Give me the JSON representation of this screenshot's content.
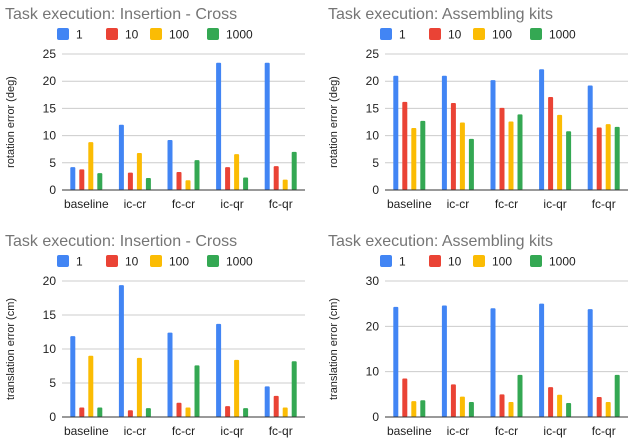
{
  "chart_data": [
    {
      "type": "bar",
      "title": "Task execution: Insertion - Cross",
      "ylabel": "rotation error (deg)",
      "xlabel": "",
      "categories": [
        "baseline",
        "ic-cr",
        "fc-cr",
        "ic-qr",
        "fc-qr"
      ],
      "ylim": [
        0,
        25
      ],
      "yticks": [
        0,
        5,
        10,
        15,
        20,
        25
      ],
      "series": [
        {
          "name": "1",
          "color": "#4285f4",
          "values": [
            4.2,
            12.0,
            9.2,
            23.4,
            23.4
          ]
        },
        {
          "name": "10",
          "color": "#ea4335",
          "values": [
            3.8,
            3.2,
            3.3,
            4.2,
            4.4
          ]
        },
        {
          "name": "100",
          "color": "#fbbc04",
          "values": [
            8.8,
            6.8,
            1.8,
            6.6,
            1.9
          ]
        },
        {
          "name": "1000",
          "color": "#34a853",
          "values": [
            3.1,
            2.2,
            5.5,
            2.3,
            7.0
          ]
        }
      ],
      "legend": "top"
    },
    {
      "type": "bar",
      "title": "Task execution: Assembling kits",
      "ylabel": "rotation error (deg)",
      "xlabel": "",
      "categories": [
        "baseline",
        "ic-cr",
        "fc-cr",
        "ic-qr",
        "fc-qr"
      ],
      "ylim": [
        0,
        25
      ],
      "yticks": [
        0,
        5,
        10,
        15,
        20,
        25
      ],
      "series": [
        {
          "name": "1",
          "color": "#4285f4",
          "values": [
            21.0,
            21.0,
            20.2,
            22.2,
            19.2
          ]
        },
        {
          "name": "10",
          "color": "#ea4335",
          "values": [
            16.2,
            16.0,
            15.1,
            17.1,
            11.5
          ]
        },
        {
          "name": "100",
          "color": "#fbbc04",
          "values": [
            11.4,
            12.4,
            12.6,
            13.8,
            12.1
          ]
        },
        {
          "name": "1000",
          "color": "#34a853",
          "values": [
            12.7,
            9.4,
            13.9,
            10.8,
            11.6
          ]
        }
      ],
      "legend": "top"
    },
    {
      "type": "bar",
      "title": "Task execution: Insertion - Cross",
      "ylabel": "translation error (cm)",
      "xlabel": "",
      "categories": [
        "baseline",
        "ic-cr",
        "fc-cr",
        "ic-qr",
        "fc-qr"
      ],
      "ylim": [
        0,
        20
      ],
      "yticks": [
        0,
        5,
        10,
        15,
        20
      ],
      "series": [
        {
          "name": "1",
          "color": "#4285f4",
          "values": [
            11.9,
            19.4,
            12.4,
            13.7,
            4.5
          ]
        },
        {
          "name": "10",
          "color": "#ea4335",
          "values": [
            1.4,
            1.0,
            2.1,
            1.6,
            3.1
          ]
        },
        {
          "name": "100",
          "color": "#fbbc04",
          "values": [
            9.0,
            8.7,
            1.4,
            8.4,
            1.4
          ]
        },
        {
          "name": "1000",
          "color": "#34a853",
          "values": [
            1.4,
            1.3,
            7.6,
            1.3,
            8.2
          ]
        }
      ],
      "legend": "top"
    },
    {
      "type": "bar",
      "title": "Task execution: Assembling kits",
      "ylabel": "translation error (cm)",
      "xlabel": "",
      "categories": [
        "baseline",
        "ic-cr",
        "fc-cr",
        "ic-qr",
        "fc-qr"
      ],
      "ylim": [
        0,
        30
      ],
      "yticks": [
        0,
        10,
        20,
        30
      ],
      "series": [
        {
          "name": "1",
          "color": "#4285f4",
          "values": [
            24.3,
            24.6,
            24.0,
            25.0,
            23.8
          ]
        },
        {
          "name": "10",
          "color": "#ea4335",
          "values": [
            8.5,
            7.2,
            5.0,
            6.6,
            4.4
          ]
        },
        {
          "name": "100",
          "color": "#fbbc04",
          "values": [
            3.5,
            4.5,
            3.3,
            4.9,
            3.3
          ]
        },
        {
          "name": "1000",
          "color": "#34a853",
          "values": [
            3.7,
            3.3,
            9.3,
            3.1,
            9.3
          ]
        }
      ],
      "legend": "top"
    }
  ]
}
